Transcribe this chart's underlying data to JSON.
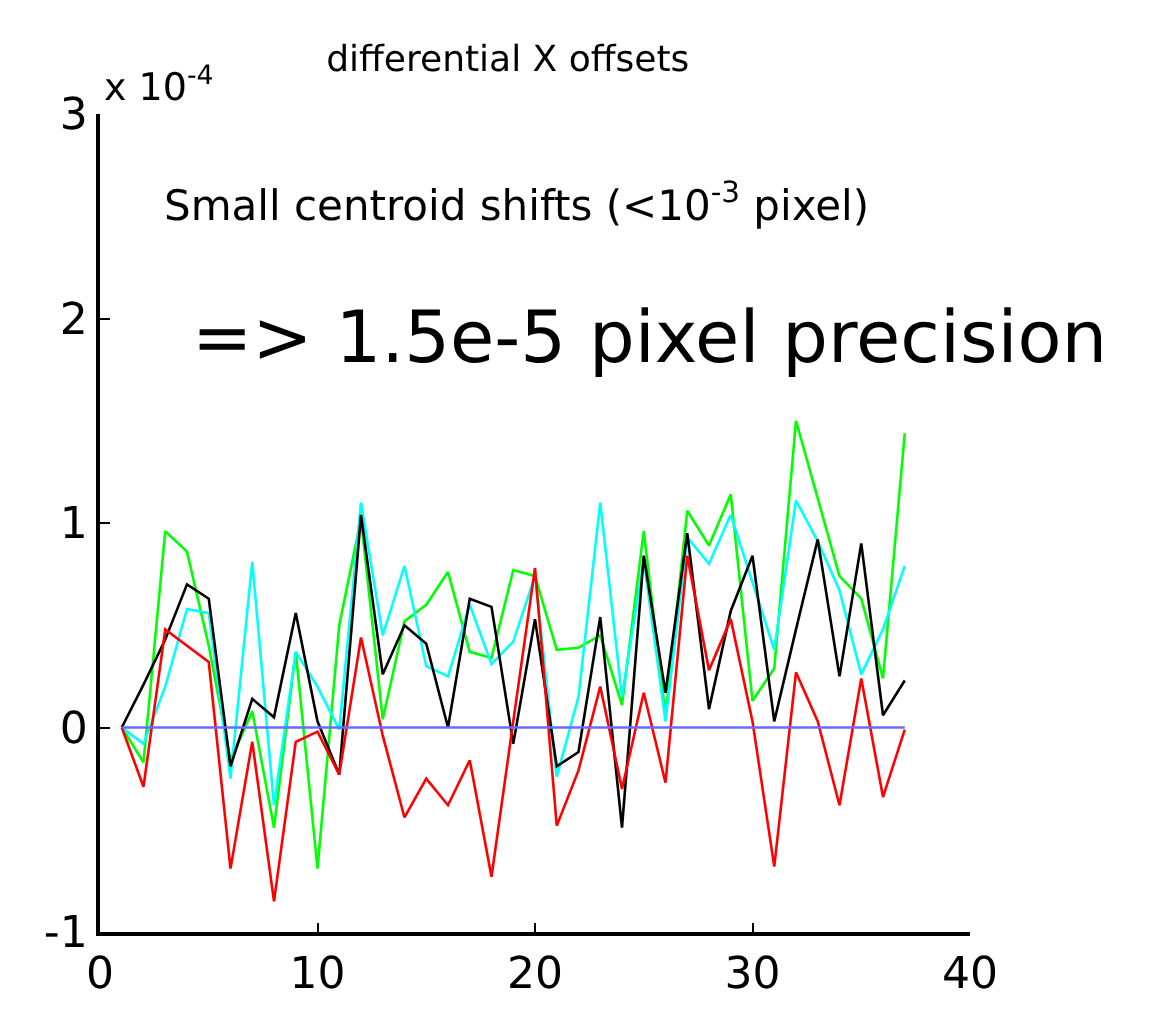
{
  "chart_data": {
    "type": "line",
    "title": "differential X offsets",
    "annotations": [
      "x 10$^{-4}$",
      "Small centroid shifts (<10$^{-3}$ pixel)",
      "=> 1.5e-5 pixel precision"
    ],
    "x": [
      1,
      2,
      3,
      4,
      5,
      6,
      7,
      8,
      9,
      10,
      11,
      12,
      13,
      14,
      15,
      16,
      17,
      18,
      19,
      20,
      21,
      22,
      23,
      24,
      25,
      26,
      27,
      28,
      29,
      30,
      31,
      32,
      33,
      34,
      35,
      36,
      37
    ],
    "series": [
      {
        "color": "#00ff00",
        "values": [
          0,
          -0.17,
          0.96,
          0.86,
          0.4,
          -0.16,
          0.08,
          -0.49,
          0.37,
          -0.69,
          0.5,
          1.02,
          0.04,
          0.52,
          0.6,
          0.76,
          0.37,
          0.34,
          0.77,
          0.74,
          0.38,
          0.39,
          0.45,
          0.11,
          0.96,
          0.06,
          1.06,
          0.89,
          1.14,
          0.13,
          0.29,
          1.5,
          1.12,
          0.74,
          0.63,
          0.24,
          1.44
        ]
      },
      {
        "color": "#00ffff",
        "values": [
          0,
          -0.08,
          0.2,
          0.58,
          0.56,
          -0.25,
          0.81,
          -0.38,
          0.37,
          0.2,
          -0.01,
          1.1,
          0.45,
          0.79,
          0.3,
          0.25,
          0.6,
          0.31,
          0.42,
          0.74,
          -0.24,
          0.15,
          1.1,
          0.15,
          0.82,
          0.03,
          0.93,
          0.8,
          1.04,
          0.71,
          0.38,
          1.11,
          0.91,
          0.67,
          0.26,
          0.48,
          0.79
        ]
      },
      {
        "color": "#000000",
        "values": [
          0,
          0.21,
          0.43,
          0.7,
          0.63,
          -0.19,
          0.14,
          0.05,
          0.56,
          0.03,
          -0.23,
          1.04,
          0.26,
          0.5,
          0.41,
          0,
          0.63,
          0.59,
          -0.08,
          0.53,
          -0.19,
          -0.12,
          0.54,
          -0.49,
          0.84,
          0.17,
          0.95,
          0.09,
          0.57,
          0.84,
          0.03,
          0.48,
          0.92,
          0.25,
          0.9,
          0.06,
          0.23
        ]
      },
      {
        "color": "#ff0000",
        "values": [
          0,
          -0.29,
          0.48,
          0.4,
          0.32,
          -0.69,
          -0.07,
          -0.85,
          -0.07,
          -0.02,
          -0.23,
          0.44,
          -0.04,
          -0.44,
          -0.25,
          -0.38,
          -0.16,
          -0.73,
          0.03,
          0.78,
          -0.48,
          -0.21,
          0.2,
          -0.3,
          0.17,
          -0.27,
          0.84,
          0.28,
          0.53,
          0.03,
          -0.68,
          0.27,
          0.03,
          -0.38,
          0.24,
          -0.34,
          -0.01
        ]
      },
      {
        "color": "#6a6aff",
        "values": [
          0,
          0,
          0,
          0,
          0,
          0,
          0,
          0,
          0,
          0,
          0,
          0,
          0,
          0,
          0,
          0,
          0,
          0,
          0,
          0,
          0,
          0,
          0,
          0,
          0,
          0,
          0,
          0,
          0,
          0,
          0,
          0,
          0,
          0,
          0,
          0,
          0
        ]
      }
    ],
    "xlim": [
      0,
      40
    ],
    "xticks": [
      0,
      10,
      20,
      30,
      40
    ],
    "ylim": [
      -1,
      3
    ],
    "yticks": [
      -1,
      0,
      1,
      2,
      3
    ],
    "line_style": "solid"
  }
}
